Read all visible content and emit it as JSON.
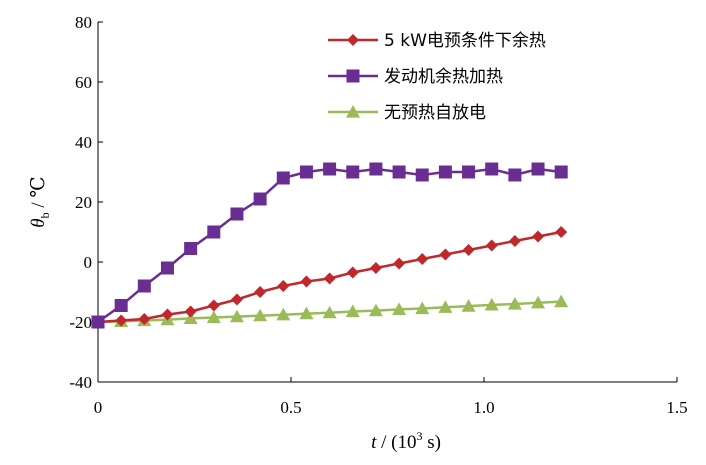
{
  "chart_data": {
    "type": "line",
    "title": "",
    "xlabel": {
      "var": "t",
      "unit_prefix": " / (10",
      "unit_exp": "3",
      "unit_suffix": " s)"
    },
    "ylabel": {
      "var": "θ",
      "sub": "b",
      "unit": " / ℃"
    },
    "xlim": [
      0,
      1.5
    ],
    "ylim": [
      -40,
      80
    ],
    "xticks": [
      0,
      0.5,
      1.0,
      1.5
    ],
    "xtick_labels": [
      "0",
      "0.5",
      "1.0",
      "1.5"
    ],
    "yticks": [
      -40,
      -20,
      0,
      20,
      40,
      60,
      80
    ],
    "ytick_labels": [
      "-40",
      "-20",
      "0",
      "20",
      "40",
      "60",
      "80"
    ],
    "grid": false,
    "legend_position": "top-right",
    "x": [
      0,
      0.06,
      0.12,
      0.18,
      0.24,
      0.3,
      0.36,
      0.42,
      0.48,
      0.54,
      0.6,
      0.66,
      0.72,
      0.78,
      0.84,
      0.9,
      0.96,
      1.02,
      1.08,
      1.14,
      1.2
    ],
    "series": [
      {
        "name": "5 kW电预条件下余热",
        "color": "#c0282b",
        "marker": "diamond",
        "values": [
          -20,
          -19.5,
          -19,
          -17.5,
          -16.5,
          -14.5,
          -12.5,
          -10,
          -8,
          -6.5,
          -5.5,
          -3.5,
          -2,
          -0.5,
          1,
          2.5,
          4,
          5.5,
          7,
          8.5,
          10
        ]
      },
      {
        "name": "发动机余热加热",
        "color": "#6a2d91",
        "marker": "square",
        "values": [
          -20,
          -14.5,
          -8,
          -2,
          4.5,
          10,
          16,
          21,
          28,
          30,
          31,
          30,
          31,
          30,
          29,
          30,
          30,
          31,
          29,
          31,
          30
        ]
      },
      {
        "name": "无预热自放电",
        "color": "#9bbb59",
        "marker": "triangle",
        "values": [
          -20,
          -19.8,
          -19.5,
          -19.2,
          -18.8,
          -18.5,
          -18.2,
          -17.9,
          -17.6,
          -17.2,
          -16.9,
          -16.5,
          -16.2,
          -15.8,
          -15.5,
          -15.1,
          -14.7,
          -14.3,
          -14,
          -13.6,
          -13.2
        ]
      }
    ]
  }
}
